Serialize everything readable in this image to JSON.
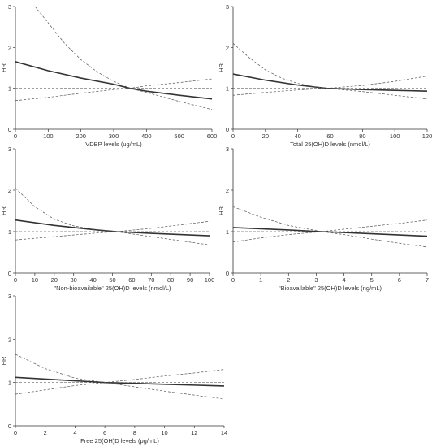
{
  "chart_data": [
    {
      "type": "line",
      "ylabel": "HR",
      "xlabel": "VDBP levels (ug/mL)",
      "xlim": [
        0,
        600
      ],
      "ylim": [
        0,
        3
      ],
      "xticks": [
        0,
        100,
        200,
        300,
        400,
        500,
        600
      ],
      "yticks": [
        0,
        1,
        2,
        3
      ],
      "reference_line": 1,
      "grid": false,
      "series": [
        {
          "role": "hr",
          "style": "solid",
          "x": [
            0,
            100,
            200,
            300,
            350,
            400,
            500,
            600
          ],
          "values": [
            1.65,
            1.43,
            1.25,
            1.1,
            1.0,
            0.93,
            0.83,
            0.74
          ]
        },
        {
          "role": "upper",
          "style": "dashed",
          "x": [
            60,
            100,
            150,
            200,
            250,
            300,
            350,
            400,
            500,
            600
          ],
          "values": [
            3.0,
            2.6,
            2.1,
            1.7,
            1.4,
            1.17,
            1.0,
            0.9,
            0.68,
            0.48
          ]
        },
        {
          "role": "lower",
          "style": "dashed",
          "x": [
            0,
            100,
            200,
            300,
            350,
            400,
            500,
            600
          ],
          "values": [
            0.7,
            0.78,
            0.88,
            0.97,
            1.0,
            1.06,
            1.14,
            1.23
          ]
        }
      ]
    },
    {
      "type": "line",
      "ylabel": "HR",
      "xlabel": "Total 25(OH)D levels (nmol/L)",
      "xlim": [
        0,
        120
      ],
      "ylim": [
        0,
        3
      ],
      "xticks": [
        0,
        20,
        40,
        60,
        80,
        100,
        120
      ],
      "yticks": [
        0,
        1,
        2,
        3
      ],
      "reference_line": 1,
      "grid": false,
      "series": [
        {
          "role": "hr",
          "style": "solid",
          "x": [
            0,
            20,
            40,
            58,
            80,
            100,
            120
          ],
          "values": [
            1.35,
            1.2,
            1.08,
            1.0,
            0.97,
            0.95,
            0.93
          ]
        },
        {
          "role": "upper",
          "style": "dashed",
          "x": [
            0,
            10,
            20,
            30,
            40,
            50,
            58,
            80,
            100,
            120
          ],
          "values": [
            2.1,
            1.75,
            1.45,
            1.25,
            1.12,
            1.04,
            1.0,
            0.92,
            0.83,
            0.74
          ]
        },
        {
          "role": "lower",
          "style": "dashed",
          "x": [
            0,
            20,
            40,
            58,
            80,
            100,
            120
          ],
          "values": [
            0.83,
            0.9,
            0.96,
            1.0,
            1.07,
            1.17,
            1.3
          ]
        }
      ]
    },
    {
      "type": "line",
      "ylabel": "HR",
      "xlabel": "\"Non-bioavailable\" 25(OH)D levels (nmol/L)",
      "xlim": [
        0,
        100
      ],
      "ylim": [
        0,
        3
      ],
      "xticks": [
        0,
        10,
        20,
        30,
        40,
        50,
        60,
        70,
        80,
        90,
        100
      ],
      "yticks": [
        0,
        1,
        2,
        3
      ],
      "reference_line": 1,
      "grid": false,
      "series": [
        {
          "role": "hr",
          "style": "solid",
          "x": [
            0,
            20,
            40,
            52,
            70,
            100
          ],
          "values": [
            1.28,
            1.15,
            1.05,
            1.0,
            0.96,
            0.9
          ]
        },
        {
          "role": "upper",
          "style": "dashed",
          "x": [
            0,
            10,
            20,
            30,
            40,
            52,
            70,
            100
          ],
          "values": [
            2.05,
            1.6,
            1.3,
            1.14,
            1.06,
            1.0,
            0.88,
            0.68
          ]
        },
        {
          "role": "lower",
          "style": "dashed",
          "x": [
            0,
            20,
            40,
            52,
            70,
            100
          ],
          "values": [
            0.8,
            0.88,
            0.96,
            1.0,
            1.08,
            1.25
          ]
        }
      ]
    },
    {
      "type": "line",
      "ylabel": "HR",
      "xlabel": "\"Bioavailable\" 25(OH)D levels (ng/mL)",
      "xlim": [
        0,
        7
      ],
      "ylim": [
        0,
        3
      ],
      "xticks": [
        0,
        1,
        2,
        3,
        4,
        5,
        6,
        7
      ],
      "yticks": [
        0,
        1,
        2,
        3
      ],
      "reference_line": 1,
      "grid": false,
      "series": [
        {
          "role": "hr",
          "style": "solid",
          "x": [
            0,
            1,
            2,
            3.2,
            4,
            5,
            6,
            7
          ],
          "values": [
            1.1,
            1.07,
            1.04,
            1.0,
            0.98,
            0.95,
            0.92,
            0.89
          ]
        },
        {
          "role": "upper",
          "style": "dashed",
          "x": [
            0,
            1,
            2,
            3.2,
            4,
            5,
            6,
            7
          ],
          "values": [
            1.6,
            1.35,
            1.15,
            1.0,
            0.93,
            0.82,
            0.72,
            0.63
          ]
        },
        {
          "role": "lower",
          "style": "dashed",
          "x": [
            0,
            1,
            2,
            3.2,
            4,
            5,
            6,
            7
          ],
          "values": [
            0.75,
            0.85,
            0.93,
            1.0,
            1.06,
            1.13,
            1.2,
            1.28
          ]
        }
      ]
    },
    {
      "type": "line",
      "ylabel": "HR",
      "xlabel": "Free 25(OH)D levels (pg/mL)",
      "xlim": [
        0,
        14
      ],
      "ylim": [
        0,
        3
      ],
      "xticks": [
        0,
        2,
        4,
        6,
        8,
        10,
        12,
        14
      ],
      "yticks": [
        0,
        1,
        2,
        3
      ],
      "reference_line": 1,
      "grid": false,
      "series": [
        {
          "role": "hr",
          "style": "solid",
          "x": [
            0,
            2,
            4,
            6,
            8,
            10,
            12,
            14
          ],
          "values": [
            1.12,
            1.08,
            1.04,
            1.0,
            0.98,
            0.96,
            0.94,
            0.92
          ]
        },
        {
          "role": "upper",
          "style": "dashed",
          "x": [
            0,
            2,
            4,
            6,
            8,
            10,
            12,
            14
          ],
          "values": [
            1.65,
            1.32,
            1.1,
            1.0,
            0.9,
            0.8,
            0.71,
            0.62
          ]
        },
        {
          "role": "lower",
          "style": "dashed",
          "x": [
            0,
            2,
            4,
            6,
            8,
            10,
            12,
            14
          ],
          "values": [
            0.73,
            0.83,
            0.93,
            1.0,
            1.07,
            1.15,
            1.22,
            1.3
          ]
        }
      ]
    }
  ]
}
